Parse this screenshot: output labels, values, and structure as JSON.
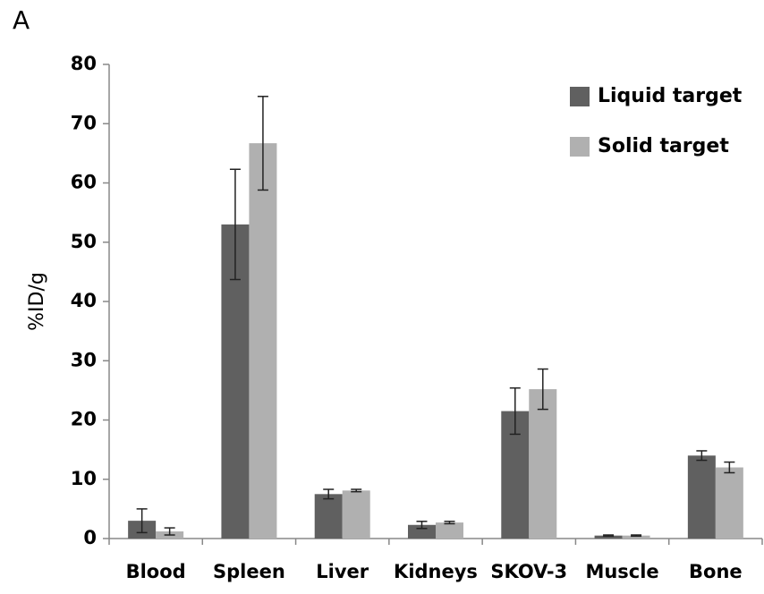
{
  "chart_data": {
    "type": "bar",
    "panel_label": "A",
    "ylabel": "%ID/g",
    "categories": [
      "Blood",
      "Spleen",
      "Liver",
      "Kidneys",
      "SKOV-3",
      "Muscle",
      "Bone"
    ],
    "series": [
      {
        "name": "Liquid target",
        "color": "#606060",
        "values": [
          3.0,
          53.0,
          7.5,
          2.3,
          21.5,
          0.5,
          14.0
        ],
        "errors": [
          2.0,
          9.3,
          0.8,
          0.6,
          3.9,
          0.1,
          0.8
        ]
      },
      {
        "name": "Solid target",
        "color": "#b0b0b0",
        "values": [
          1.2,
          66.7,
          8.1,
          2.7,
          25.2,
          0.5,
          12.0
        ],
        "errors": [
          0.6,
          7.9,
          0.2,
          0.2,
          3.4,
          0.1,
          0.9
        ]
      }
    ],
    "ylim": [
      0,
      80
    ],
    "yticks": [
      0,
      10,
      20,
      30,
      40,
      50,
      60,
      70,
      80
    ],
    "legend": "upper right"
  }
}
